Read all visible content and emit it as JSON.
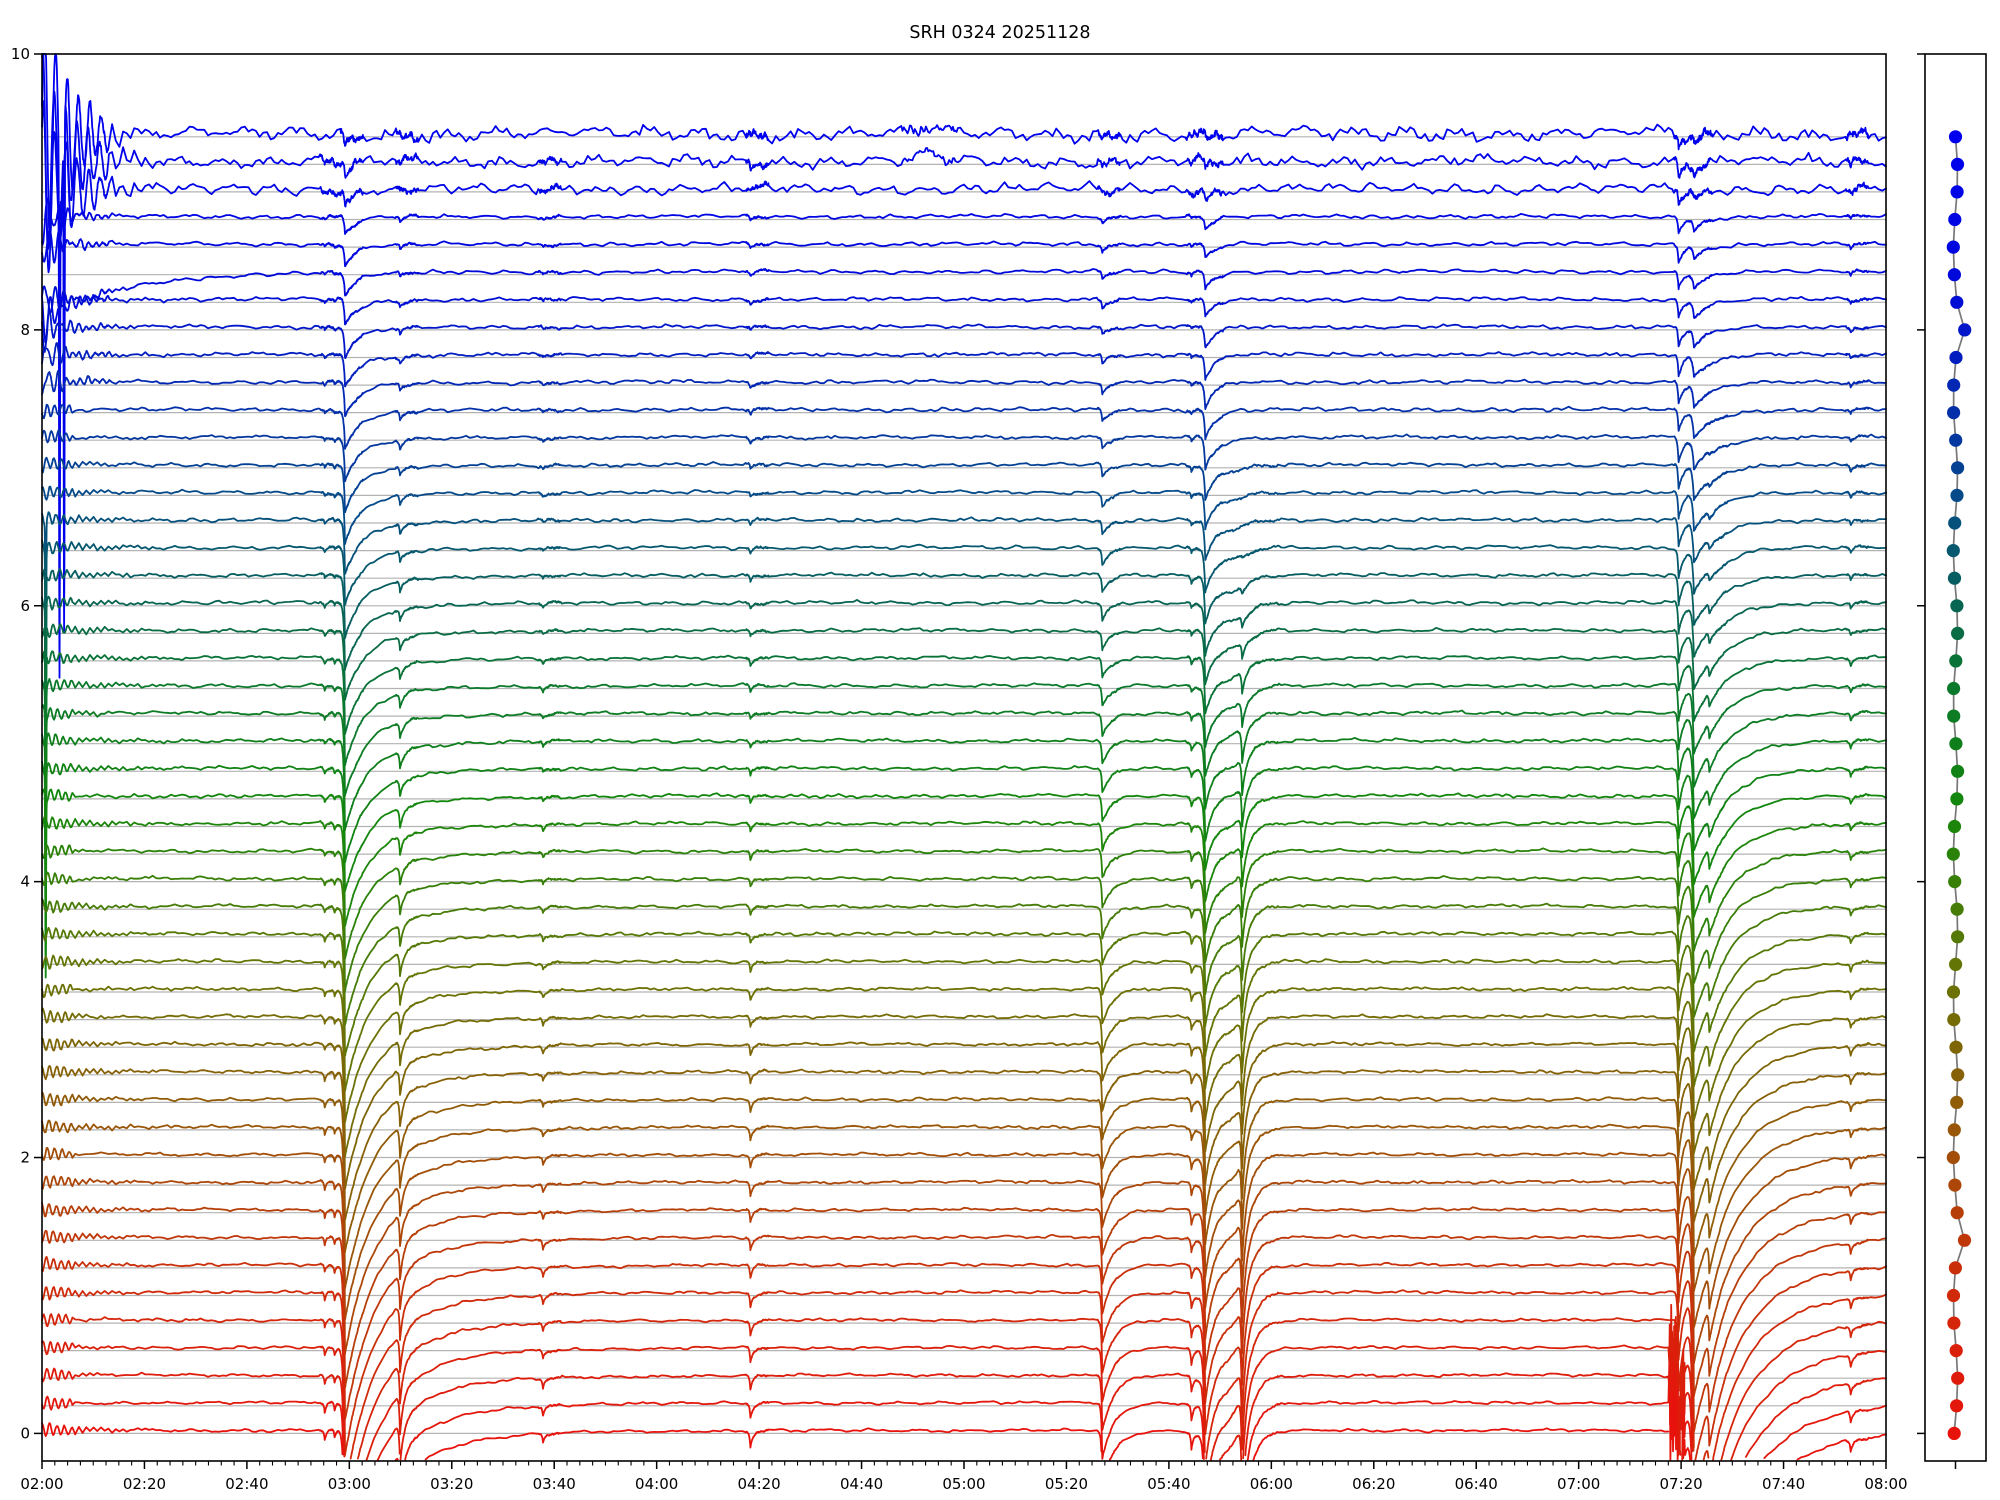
{
  "title": "SRH 0324 20251128",
  "chart_data": {
    "type": "line",
    "title": "SRH 0324 20251128",
    "description": "Multi-channel radioheliograph correlation plot: 48 stacked flux curves, one per frequency channel, color-coded from blue (top, high channels) through green to red (bottom, low channels). Narrow side panel shows one colored marker per channel at its offset level.",
    "x_axis": {
      "start_hour": 2.0,
      "end_hour": 8.0,
      "major_tick_minutes": 20,
      "minor_tick_minutes": 2.5,
      "tick_labels": [
        "02:00",
        "02:20",
        "02:40",
        "03:00",
        "03:20",
        "03:40",
        "04:00",
        "04:20",
        "04:40",
        "05:00",
        "05:20",
        "05:40",
        "06:00",
        "06:20",
        "06:40",
        "07:00",
        "07:20",
        "07:40",
        "08:00"
      ]
    },
    "y_axis": {
      "min": -0.2,
      "max": 10.0,
      "major_ticks": [
        0,
        2,
        4,
        6,
        8,
        10
      ],
      "tick_labels": [
        "0",
        "2",
        "4",
        "6",
        "8",
        "10"
      ]
    },
    "grid": {
      "horizontal": true,
      "vertical": false,
      "color": "#b3b3b3"
    },
    "traces": {
      "count": 48,
      "offset_min": 0.0,
      "offset_step": 0.2,
      "offset_max": 9.4,
      "ride_above_baseline": 0.022,
      "noise_amp_top3": [
        0.05,
        0.042,
        0.036
      ],
      "noise_amp_base": 0.013,
      "colormap_stops": [
        [
          0.0,
          [
            0,
            0,
            238
          ]
        ],
        [
          0.12,
          [
            0,
            10,
            215
          ]
        ],
        [
          0.28,
          [
            5,
            75,
            135
          ]
        ],
        [
          0.42,
          [
            10,
            120,
            45
          ]
        ],
        [
          0.52,
          [
            20,
            135,
            10
          ]
        ],
        [
          0.64,
          [
            100,
            118,
            5
          ]
        ],
        [
          0.76,
          [
            150,
            88,
            8
          ]
        ],
        [
          0.88,
          [
            205,
            45,
            10
          ]
        ],
        [
          1.0,
          [
            232,
            18,
            12
          ]
        ]
      ]
    },
    "start_transient": {
      "wild_amps": [
        0.95,
        0.8,
        0.68
      ],
      "wild_tau": 0.1,
      "wild_freq": 170,
      "mid_amp_base": 0.2,
      "mid_amp_slope": 0.013,
      "mid_tau": 0.05,
      "base_amp": 0.05,
      "base_tau": 0.15,
      "riser_trace": 5,
      "riser_depth": 0.35,
      "riser_tau": 0.25,
      "spikes": [
        {
          "t": 2.057,
          "depth": 3.3,
          "from": 0,
          "to": 1
        },
        {
          "t": 2.072,
          "depth": 3.5,
          "from": 0,
          "to": 1
        },
        {
          "t": 2.012,
          "depth": 1.3,
          "from": 14,
          "to": 24
        }
      ]
    },
    "events": [
      {
        "type": "dip",
        "t": 2.92,
        "d0": 0.015,
        "d1": 0.07,
        "pow": 1.0,
        "tau0": 0.006,
        "label": "small precursor dip 02:55"
      },
      {
        "type": "dip",
        "t": 2.952,
        "d0": 0.012,
        "d1": 0.06,
        "pow": 1.0,
        "tau0": 0.006,
        "label": "small precursor dip 02:57"
      },
      {
        "type": "dip",
        "t": 2.986,
        "d0": 0.1,
        "d1": 1.45,
        "pow": 1.4,
        "tau0": 0.03,
        "tau1": 0.11,
        "rise": 0.004,
        "label": "deep dip 02:59 all channels"
      },
      {
        "type": "dip",
        "t": 2.986,
        "d0": 0.0,
        "d1": 0.18,
        "pow": 1.2,
        "tau0": 0.25,
        "tau1": 0.3,
        "label": "slow recovery tail after 02:59"
      },
      {
        "type": "dip",
        "t": 3.165,
        "d0": 0.03,
        "d1": 0.32,
        "pow": 1.6,
        "tau0": 0.012,
        "label": "narrow dip 03:10"
      },
      {
        "type": "dip",
        "t": 3.63,
        "d0": 0.015,
        "d1": 0.07,
        "pow": 1.5,
        "tau0": 0.008,
        "label": "minor dip 03:38"
      },
      {
        "type": "dip",
        "t": 4.305,
        "d0": 0.025,
        "d1": 0.11,
        "pow": 1.3,
        "tau0": 0.01,
        "label": "small dip 04:18"
      },
      {
        "type": "bump",
        "t": 4.89,
        "sigma": 0.03,
        "d": 0.05,
        "from": 0,
        "to": 1,
        "label": "small bump top channels 04:53"
      },
      {
        "type": "dip",
        "t": 5.45,
        "d0": 0.035,
        "d1": 0.42,
        "pow": 1.4,
        "tau0": 0.02,
        "tau1": 0.04,
        "label": "dip 05:27"
      },
      {
        "type": "dip",
        "t": 5.74,
        "d0": 0.02,
        "d1": 0.12,
        "pow": 1.3,
        "tau0": 0.008,
        "label": "small dip 05:44"
      },
      {
        "type": "dip",
        "t": 5.785,
        "d0": 0.06,
        "d1": 1.1,
        "pow": 1.25,
        "tau0": 0.03,
        "tau1": 0.05,
        "rise": 0.004,
        "label": "deep dip 05:47"
      },
      {
        "type": "gauss",
        "t": 5.875,
        "sigma": 0.05,
        "d0": 0.0,
        "d1": 0.35,
        "pow": 1.3,
        "fstart": 0.2,
        "label": "broad depression 05:52"
      },
      {
        "type": "dip",
        "t": 5.905,
        "d0": 0.0,
        "d1": 0.65,
        "pow": 1.2,
        "tau0": 0.012,
        "fstart": 0.3,
        "label": "narrow dip 05:54"
      },
      {
        "type": "dip",
        "t": 7.325,
        "d0": 0.1,
        "d1": 0.55,
        "pow": 1.2,
        "tau0": 0.018,
        "label": "sharp dip 07:19"
      },
      {
        "type": "burst",
        "t0": 7.295,
        "t1": 7.345,
        "amp": 0.22,
        "from": 44,
        "to": 47,
        "label": "noise burst bottom channels 07:19"
      },
      {
        "type": "dip",
        "t": 7.375,
        "d0": 0.07,
        "d1": 1.8,
        "pow": 1.7,
        "tau0": 0.04,
        "tau1": 0.16,
        "rise": 0.005,
        "label": "deep dip with slow recovery 07:22"
      },
      {
        "type": "dip",
        "t": 7.425,
        "d0": 0.0,
        "d1": 0.35,
        "pow": 1.3,
        "tau0": 0.05,
        "fstart": 0.15,
        "label": "secondary dip 07:25"
      },
      {
        "type": "dip",
        "t": 7.885,
        "d0": 0.025,
        "d1": 0.08,
        "pow": 1.0,
        "tau0": 0.008,
        "label": "tiny dip 07:53"
      }
    ],
    "side_panel": {
      "dots": 48,
      "marker_radius": 6.6,
      "line_color": "#777777",
      "offset_outlier_indices": [
        7,
        40
      ],
      "y_ticks": [
        0,
        2,
        4,
        6,
        8,
        10
      ]
    },
    "legend": "none",
    "colors": {
      "spine": "#000000",
      "grid": "#b3b3b3",
      "background": "#ffffff"
    }
  }
}
